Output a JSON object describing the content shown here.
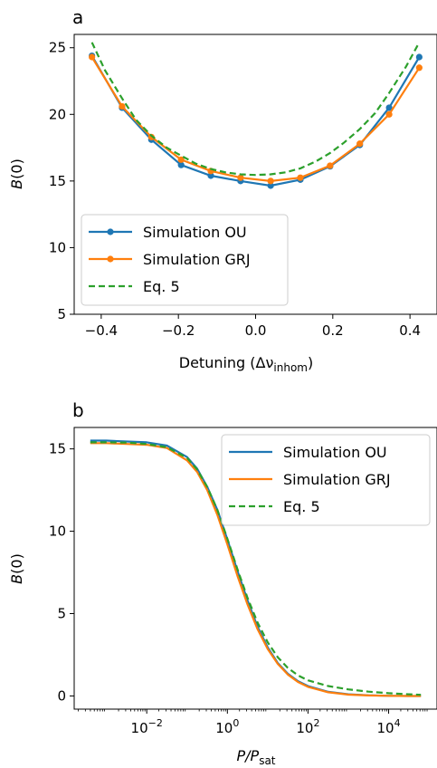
{
  "chart_data": [
    {
      "type": "line",
      "panel_label": "a",
      "title": "",
      "xlabel_main": "Detuning (Δν",
      "xlabel_sub": "inhom",
      "xlabel_end": ")",
      "ylabel_main": "B",
      "ylabel_end": "(0)",
      "xlim": [
        -0.47,
        0.47
      ],
      "ylim": [
        5,
        26
      ],
      "xticks": [
        -0.4,
        -0.2,
        0.0,
        0.2,
        0.4
      ],
      "xtick_labels": [
        "−0.4",
        "−0.2",
        "0.0",
        "0.2",
        "0.4"
      ],
      "yticks": [
        5,
        10,
        15,
        20,
        25
      ],
      "ytick_labels": [
        "5",
        "10",
        "15",
        "20",
        "25"
      ],
      "legend_position": "lower-left",
      "grid": false,
      "x": [
        -0.424,
        -0.346,
        -0.27,
        -0.193,
        -0.116,
        -0.039,
        0.039,
        0.116,
        0.193,
        0.27,
        0.346,
        0.424
      ],
      "series": [
        {
          "name": "Simulation OU",
          "style": "line-marker",
          "color": "#1f77b4",
          "values": [
            24.4,
            20.5,
            18.1,
            16.2,
            15.4,
            15.0,
            14.65,
            15.1,
            16.1,
            17.7,
            20.5,
            24.3
          ]
        },
        {
          "name": "Simulation GRJ",
          "style": "line-marker",
          "color": "#ff7f0e",
          "values": [
            24.3,
            20.6,
            18.3,
            16.6,
            15.75,
            15.25,
            15.0,
            15.25,
            16.15,
            17.8,
            20.0,
            23.5
          ]
        },
        {
          "name": "Eq. 5",
          "style": "dashed",
          "color": "#2ca02c",
          "x": [
            -0.424,
            -0.39,
            -0.346,
            -0.31,
            -0.27,
            -0.23,
            -0.193,
            -0.155,
            -0.116,
            -0.078,
            -0.039,
            0.0,
            0.039,
            0.078,
            0.116,
            0.155,
            0.193,
            0.23,
            0.27,
            0.31,
            0.346,
            0.39,
            0.424
          ],
          "values": [
            25.4,
            23.3,
            21.2,
            19.6,
            18.4,
            17.5,
            16.9,
            16.3,
            15.9,
            15.65,
            15.5,
            15.45,
            15.5,
            15.65,
            15.95,
            16.45,
            17.1,
            17.9,
            18.9,
            20.1,
            21.6,
            23.6,
            25.4
          ]
        }
      ]
    },
    {
      "type": "line",
      "panel_label": "b",
      "title": "",
      "xlabel_main": "P",
      "xlabel_mid": "/P",
      "xlabel_sub": "sat",
      "ylabel_main": "B",
      "ylabel_end": "(0)",
      "xscale": "log",
      "xlim_log10": [
        -3.8,
        5.2
      ],
      "ylim": [
        -0.8,
        16.3
      ],
      "xticks_log10": [
        -2,
        0,
        2,
        4
      ],
      "xtick_base": "10",
      "xtick_exponents": [
        "−2",
        "0",
        "2",
        "4"
      ],
      "yticks": [
        0,
        5,
        10,
        15
      ],
      "ytick_labels": [
        "0",
        "5",
        "10",
        "15"
      ],
      "legend_position": "top-right",
      "grid": false,
      "x_log10": [
        -3.4,
        -3.0,
        -2.5,
        -2.0,
        -1.5,
        -1.0,
        -0.75,
        -0.5,
        -0.25,
        0.0,
        0.25,
        0.5,
        0.75,
        1.0,
        1.25,
        1.5,
        1.75,
        2.0,
        2.5,
        3.0,
        3.5,
        4.0,
        4.5,
        4.8
      ],
      "series": [
        {
          "name": "Simulation OU",
          "style": "line",
          "color": "#1f77b4",
          "values": [
            15.5,
            15.5,
            15.45,
            15.4,
            15.2,
            14.5,
            13.8,
            12.7,
            11.3,
            9.5,
            7.6,
            5.8,
            4.2,
            2.95,
            2.0,
            1.35,
            0.9,
            0.6,
            0.25,
            0.1,
            0.04,
            0.01,
            0.0,
            0.0
          ]
        },
        {
          "name": "Simulation GRJ",
          "style": "line",
          "color": "#ff7f0e",
          "values": [
            15.35,
            15.35,
            15.3,
            15.25,
            15.05,
            14.3,
            13.6,
            12.5,
            11.0,
            9.2,
            7.3,
            5.55,
            4.05,
            2.85,
            1.95,
            1.3,
            0.85,
            0.55,
            0.22,
            0.08,
            0.03,
            0.01,
            0.0,
            0.0
          ]
        },
        {
          "name": "Eq. 5",
          "style": "dashed",
          "color": "#2ca02c",
          "values": [
            15.4,
            15.4,
            15.38,
            15.3,
            15.1,
            14.45,
            13.75,
            12.7,
            11.3,
            9.55,
            7.7,
            5.95,
            4.45,
            3.25,
            2.35,
            1.7,
            1.25,
            0.95,
            0.6,
            0.4,
            0.26,
            0.17,
            0.1,
            0.07
          ]
        }
      ]
    }
  ]
}
